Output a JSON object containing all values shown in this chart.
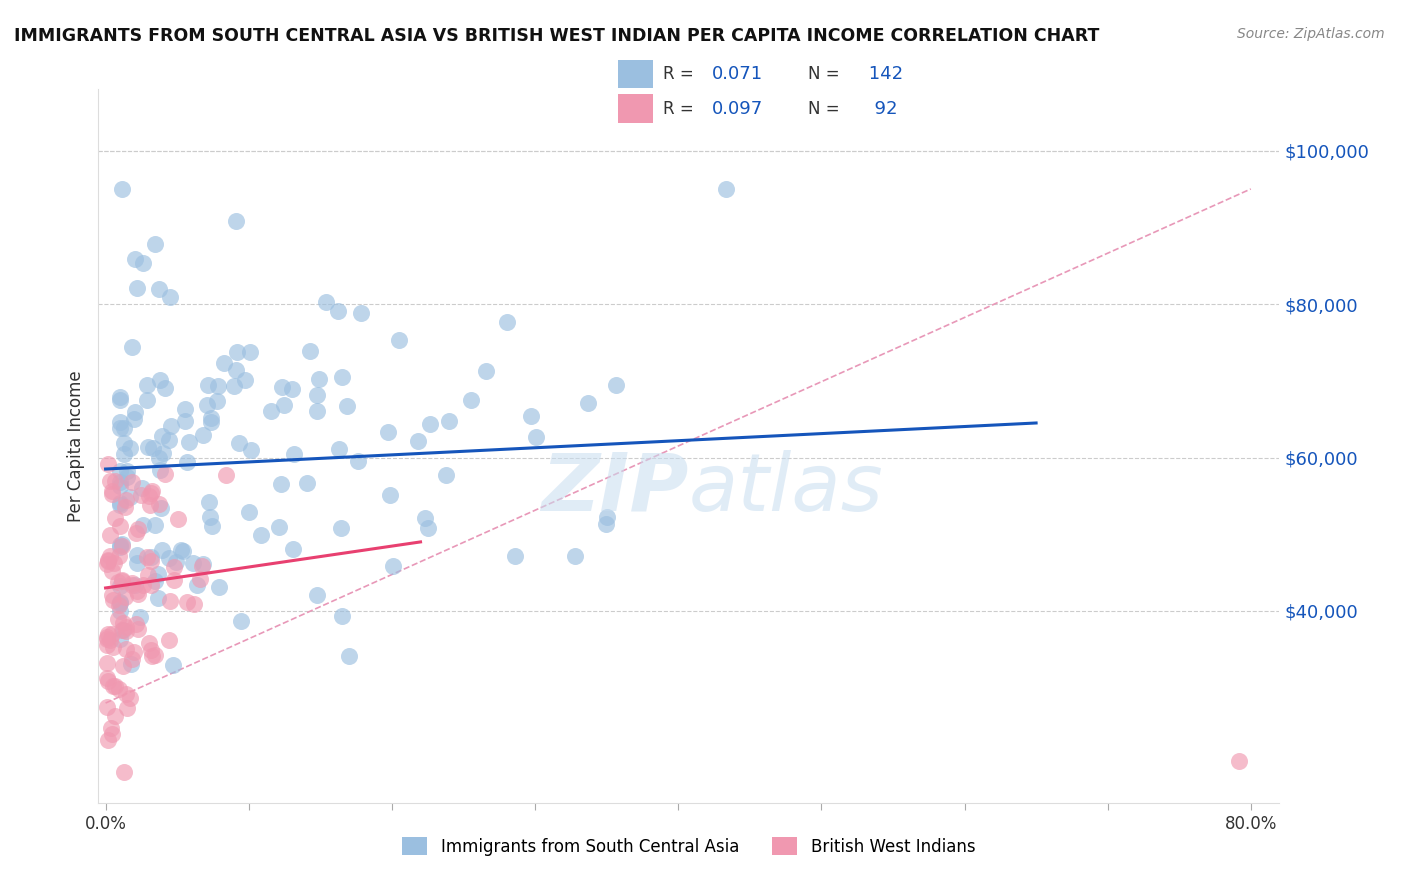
{
  "title": "IMMIGRANTS FROM SOUTH CENTRAL ASIA VS BRITISH WEST INDIAN PER CAPITA INCOME CORRELATION CHART",
  "source": "Source: ZipAtlas.com",
  "ylabel": "Per Capita Income",
  "xlim": [
    -0.005,
    0.82
  ],
  "ylim": [
    15000,
    108000
  ],
  "yticks": [
    40000,
    60000,
    80000,
    100000
  ],
  "ytick_labels": [
    "$40,000",
    "$60,000",
    "$80,000",
    "$100,000"
  ],
  "xticks": [
    0.0,
    0.1,
    0.2,
    0.3,
    0.4,
    0.5,
    0.6,
    0.7,
    0.8
  ],
  "xtick_labels": [
    "0.0%",
    "",
    "",
    "",
    "",
    "",
    "",
    "",
    "80.0%"
  ],
  "blue_color": "#9bbfe0",
  "pink_color": "#f098b0",
  "blue_line_color": "#1555bb",
  "pink_line_color": "#e84070",
  "dashed_line_color": "#e898b8",
  "grid_color": "#cccccc",
  "R_blue": 0.071,
  "N_blue": 142,
  "R_pink": 0.097,
  "N_pink": 92,
  "legend_label_blue": "Immigrants from South Central Asia",
  "legend_label_pink": "British West Indians",
  "watermark": "ZIPAtlas",
  "blue_line_x": [
    0.0,
    0.65
  ],
  "blue_line_y": [
    58500,
    64500
  ],
  "pink_line_x": [
    0.0,
    0.22
  ],
  "pink_line_y": [
    43000,
    49000
  ],
  "dashed_line_x": [
    0.0,
    0.8
  ],
  "dashed_line_y": [
    28000,
    95000
  ]
}
